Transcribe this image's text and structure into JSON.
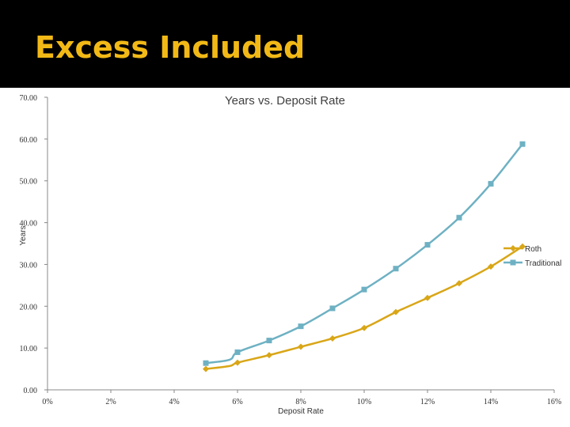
{
  "slide": {
    "title": "Excess Included",
    "band_color": "#000000",
    "title_color": "#f2b916"
  },
  "chart_data": {
    "type": "line",
    "title": "Years vs. Deposit Rate",
    "xlabel": "Deposit Rate",
    "ylabel": "Years",
    "xlim": [
      0,
      0.16
    ],
    "ylim": [
      0,
      70
    ],
    "x_ticks": [
      0,
      0.02,
      0.04,
      0.06,
      0.08,
      0.1,
      0.12,
      0.14,
      0.16
    ],
    "x_tick_labels": [
      "0%",
      "2%",
      "4%",
      "6%",
      "8%",
      "10%",
      "12%",
      "14%",
      "16%"
    ],
    "y_ticks": [
      0,
      10,
      20,
      30,
      40,
      50,
      60,
      70
    ],
    "y_tick_labels": [
      "0.00",
      "10.00",
      "20.00",
      "30.00",
      "40.00",
      "50.00",
      "60.00",
      "70.00"
    ],
    "grid": false,
    "legend_position": "right",
    "series": [
      {
        "name": "Roth",
        "color": "#d9a617",
        "marker": "diamond",
        "points": [
          [
            0.05,
            5.0
          ],
          [
            0.0575,
            5.7
          ],
          [
            0.06,
            6.5
          ],
          [
            0.07,
            8.3
          ],
          [
            0.08,
            10.3
          ],
          [
            0.09,
            12.3
          ],
          [
            0.1,
            14.8
          ],
          [
            0.11,
            18.6
          ],
          [
            0.12,
            22.0
          ],
          [
            0.13,
            25.5
          ],
          [
            0.14,
            29.5
          ],
          [
            0.15,
            34.3
          ]
        ]
      },
      {
        "name": "Traditional",
        "color": "#6eb1c3",
        "marker": "square",
        "points": [
          [
            0.05,
            6.4
          ],
          [
            0.0575,
            7.2
          ],
          [
            0.06,
            9.0
          ],
          [
            0.07,
            11.8
          ],
          [
            0.08,
            15.2
          ],
          [
            0.09,
            19.5
          ],
          [
            0.1,
            24.0
          ],
          [
            0.11,
            29.0
          ],
          [
            0.12,
            34.7
          ],
          [
            0.13,
            41.2
          ],
          [
            0.14,
            49.3
          ],
          [
            0.15,
            58.8
          ]
        ]
      }
    ]
  }
}
